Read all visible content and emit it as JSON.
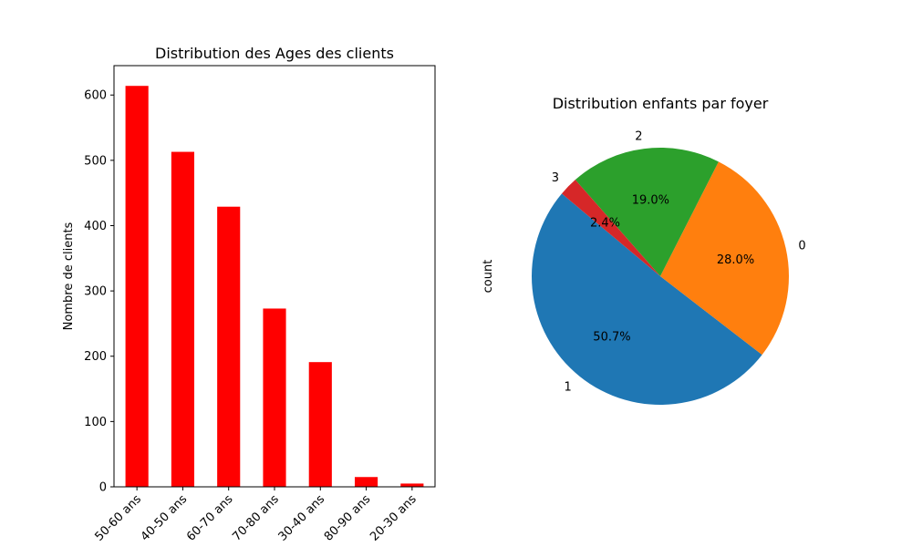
{
  "chart_data": [
    {
      "type": "bar",
      "title": "Distribution des Ages des clients",
      "xlabel": "",
      "ylabel": "Nombre de clients",
      "categories": [
        "50-60 ans",
        "40-50 ans",
        "60-70 ans",
        "70-80 ans",
        "30-40 ans",
        "80-90 ans",
        "20-30 ans"
      ],
      "values": [
        614,
        513,
        429,
        273,
        191,
        15,
        5
      ],
      "ylim": [
        0,
        645
      ],
      "yticks": [
        0,
        100,
        200,
        300,
        400,
        500,
        600
      ],
      "color": "#ff0000",
      "grid": false,
      "xtick_rotation": 45
    },
    {
      "type": "pie",
      "title": "Distribution enfants par foyer",
      "ylabel": "count",
      "labels": [
        "1",
        "0",
        "2",
        "3"
      ],
      "percent_labels": [
        "50.7%",
        "28.0%",
        "19.0%",
        "2.4%"
      ],
      "values": [
        50.7,
        28.0,
        19.0,
        2.4
      ],
      "colors": [
        "#1f77b4",
        "#ff7f0e",
        "#2ca02c",
        "#d62728"
      ],
      "start_angle": 140
    }
  ]
}
